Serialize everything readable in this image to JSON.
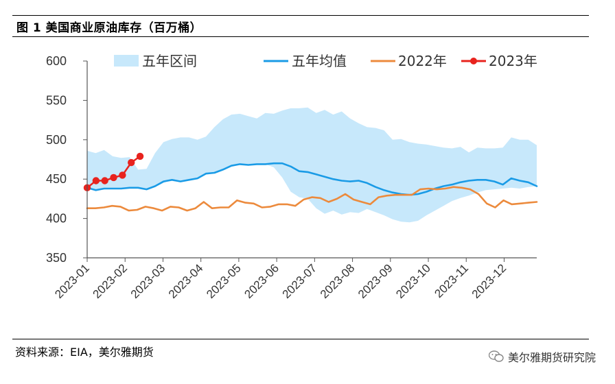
{
  "header": {
    "title": "图 1  美国商业原油库存（百万桶）"
  },
  "footer": {
    "source": "资料来源：EIA，美尔雅期货",
    "watermark": "美尔雅期货研究院"
  },
  "colors": {
    "band": "#c7e8fb",
    "avg": "#1a9be6",
    "y2022": "#ec8a3c",
    "y2023": "#e8231e",
    "axis": "#555555"
  },
  "chart_data": {
    "type": "line",
    "title": "美国商业原油库存（百万桶）",
    "xlabel": "",
    "ylabel": "",
    "ylim": [
      350,
      600
    ],
    "yticks": [
      350,
      400,
      450,
      500,
      550,
      600
    ],
    "xlim": [
      1,
      52
    ],
    "xticks": [
      {
        "week": 1,
        "label": "2023-01"
      },
      {
        "week": 5.3,
        "label": "2023-02"
      },
      {
        "week": 9.6,
        "label": "2023-03"
      },
      {
        "week": 13.9,
        "label": "2023-04"
      },
      {
        "week": 18.2,
        "label": "2023-05"
      },
      {
        "week": 22.5,
        "label": "2023-06"
      },
      {
        "week": 26.8,
        "label": "2023-07"
      },
      {
        "week": 31.1,
        "label": "2023-08"
      },
      {
        "week": 35.4,
        "label": "2023-09"
      },
      {
        "week": 39.7,
        "label": "2023-10"
      },
      {
        "week": 44,
        "label": "2023-11"
      },
      {
        "week": 48.3,
        "label": "2023-12"
      }
    ],
    "legend": [
      "五年区间",
      "五年均值",
      "2022年",
      "2023年"
    ],
    "legend_position": "top",
    "band": {
      "name": "五年区间",
      "upper": [
        486,
        483,
        487,
        479,
        477,
        478,
        462,
        463,
        483,
        497,
        501,
        503,
        503,
        500,
        504,
        516,
        526,
        532,
        533,
        530,
        527,
        534,
        533,
        537,
        540,
        540,
        541,
        534,
        538,
        532,
        536,
        527,
        521,
        516,
        515,
        512,
        500,
        501,
        497,
        495,
        494,
        492,
        490,
        489,
        491,
        484,
        490,
        489,
        489,
        490,
        503,
        500,
        500,
        493
      ],
      "lower": [
        438,
        436,
        437,
        438,
        438,
        438,
        439,
        438,
        440,
        445,
        449,
        448,
        449,
        452,
        457,
        458,
        462,
        467,
        468,
        468,
        469,
        469,
        465,
        452,
        434,
        427,
        425,
        413,
        406,
        410,
        405,
        408,
        407,
        412,
        408,
        404,
        399,
        396,
        395,
        397,
        404,
        410,
        416,
        422,
        426,
        429,
        433,
        436,
        437,
        438,
        439,
        438,
        440,
        441
      ]
    },
    "series": [
      {
        "name": "五年均值",
        "values": [
          439,
          436,
          438,
          438,
          438,
          439,
          439,
          437,
          441,
          447,
          449,
          447,
          449,
          451,
          457,
          458,
          462,
          467,
          469,
          468,
          469,
          469,
          470,
          470,
          466,
          460,
          459,
          456,
          453,
          450,
          448,
          447,
          448,
          445,
          440,
          436,
          433,
          431,
          430,
          431,
          434,
          438,
          441,
          443,
          446,
          448,
          449,
          449,
          447,
          443,
          451,
          448,
          446,
          441
        ]
      },
      {
        "name": "2022年",
        "values": [
          413,
          413,
          414,
          416,
          415,
          410,
          411,
          415,
          413,
          410,
          415,
          414,
          410,
          413,
          421,
          413,
          414,
          414,
          423,
          420,
          419,
          414,
          415,
          418,
          418,
          416,
          424,
          427,
          426,
          421,
          425,
          431,
          424,
          421,
          418,
          427,
          429,
          430,
          430,
          430,
          437,
          438,
          437,
          438,
          440,
          439,
          437,
          431,
          419,
          414,
          423,
          418,
          419,
          420,
          421
        ]
      },
      {
        "name": "2023年",
        "values": [
          439,
          448,
          448,
          452,
          455,
          471,
          479
        ]
      }
    ]
  }
}
